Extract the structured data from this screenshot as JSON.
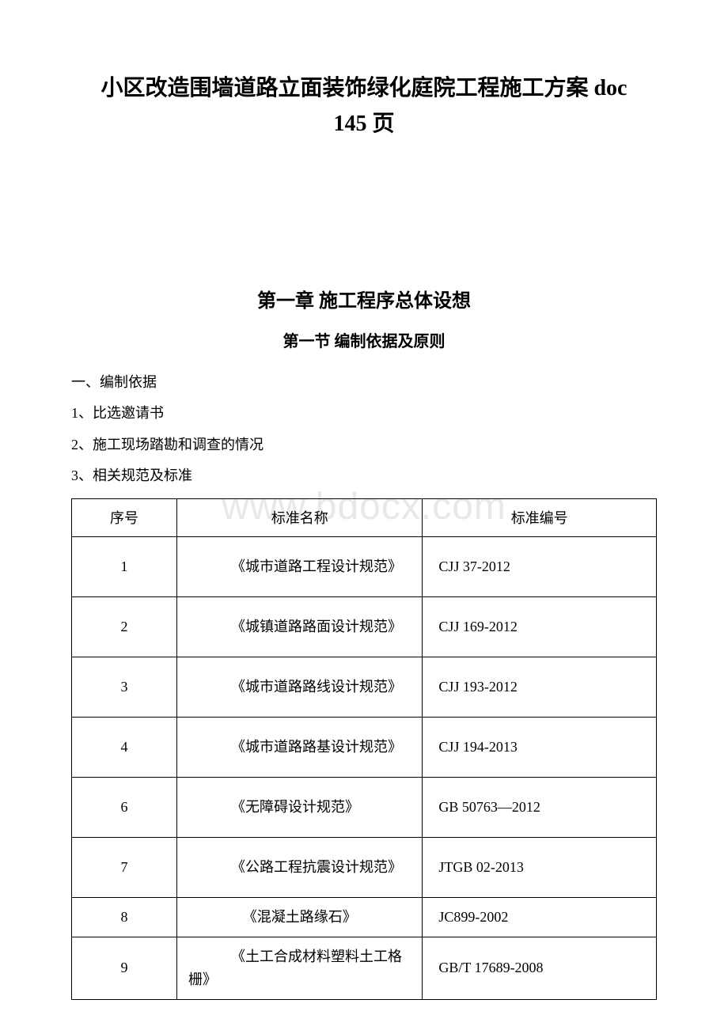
{
  "document": {
    "title_line1": "小区改造围墙道路立面装饰绿化庭院工程施工方案 doc",
    "title_line2": "145 页",
    "chapter": "第一章 施工程序总体设想",
    "section": "第一节 编制依据及原则",
    "paragraphs": [
      "一、编制依据",
      "1、比选邀请书",
      "2、施工现场踏勘和调查的情况",
      "3、相关规范及标准"
    ]
  },
  "watermark": {
    "text": "www.bdocx.com",
    "color": "#e8e8e8"
  },
  "standards_table": {
    "type": "table",
    "columns": [
      {
        "label": "序号",
        "key": "seq"
      },
      {
        "label": "标准名称",
        "key": "name"
      },
      {
        "label": "标准编号",
        "key": "code"
      }
    ],
    "rows": [
      {
        "seq": "1",
        "name": "《城市道路工程设计规范》",
        "code": "CJJ 37-2012",
        "tall": true
      },
      {
        "seq": "2",
        "name": "《城镇道路路面设计规范》",
        "code": "CJJ 169-2012",
        "tall": true
      },
      {
        "seq": "3",
        "name": "《城市道路路线设计规范》",
        "code": "CJJ 193-2012",
        "tall": true
      },
      {
        "seq": "4",
        "name": "《城市道路路基设计规范》",
        "code": "CJJ 194-2013",
        "tall": true
      },
      {
        "seq": "6",
        "name": "《无障碍设计规范》",
        "code": "GB 50763—2012",
        "tall": true
      },
      {
        "seq": "7",
        "name": "《公路工程抗震设计规范》",
        "code": "JTGB 02-2013",
        "tall": true
      },
      {
        "seq": "8",
        "name": "《混凝土路缘石》",
        "code": "JC899-2002",
        "tall": false
      },
      {
        "seq": "9",
        "name": "《土工合成材料塑料土工格栅》",
        "code": "GB/T 17689-2008",
        "tall": true
      }
    ],
    "border_color": "#000000",
    "font_size": 18
  },
  "colors": {
    "background": "#ffffff",
    "text": "#000000"
  }
}
